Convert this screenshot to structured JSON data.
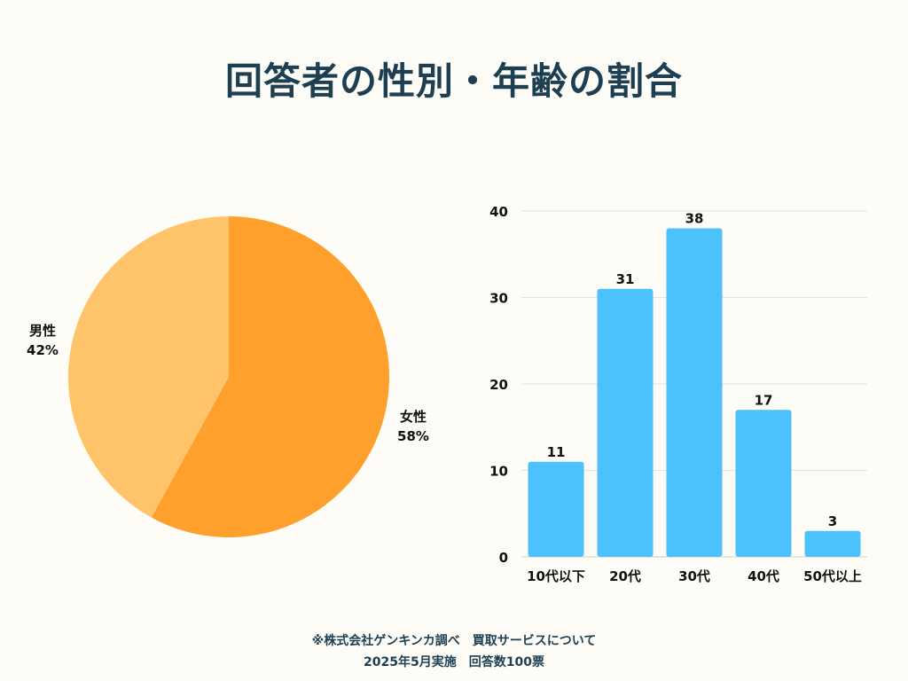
{
  "title": "回答者の性別・年齢の割合",
  "chart_data": [
    {
      "type": "pie",
      "slices": [
        {
          "label": "女性",
          "value": 58,
          "value_label": "58%",
          "color": "#FF9F2C"
        },
        {
          "label": "男性",
          "value": 42,
          "value_label": "42%",
          "color": "#FFC469"
        }
      ]
    },
    {
      "type": "bar",
      "categories": [
        "10代以下",
        "20代",
        "30代",
        "40代",
        "50代以上"
      ],
      "values": [
        11,
        31,
        38,
        17,
        3
      ],
      "ylim": [
        0,
        40
      ],
      "yticks": [
        0,
        10,
        20,
        30,
        40
      ],
      "grid": true,
      "color": "#4BC2FB"
    }
  ],
  "footer": {
    "line1": "※株式会社ゲンキンカ調べ　買取サービスについて",
    "line2": "2025年5月実施　回答数100票"
  }
}
